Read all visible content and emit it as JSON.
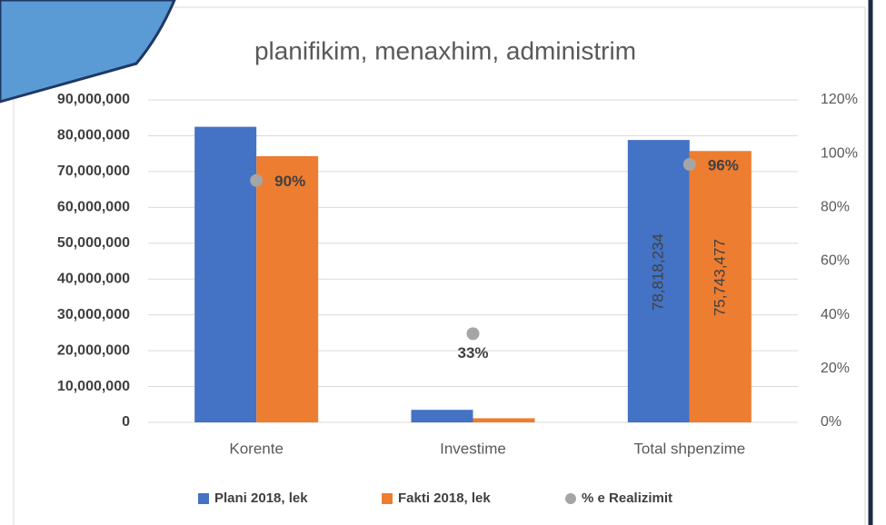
{
  "chart_data": {
    "type": "bar",
    "title": "planifikim, menaxhim, administrim",
    "categories": [
      "Korente",
      "Investime",
      "Total shpenzime"
    ],
    "series": [
      {
        "name": "Plani 2018, lek",
        "color": "#4472c4",
        "values": [
          82500000,
          3500000,
          78818234
        ],
        "value_labels": [
          null,
          null,
          "78,818,234"
        ]
      },
      {
        "name": "Fakti 2018, lek",
        "color": "#ed7d31",
        "values": [
          74300000,
          1150000,
          75743477
        ],
        "value_labels": [
          null,
          null,
          "75,743,477"
        ]
      },
      {
        "name": "% e Realizimit",
        "color": "#a5a5a5",
        "axis": "y2",
        "values": [
          90,
          33,
          96
        ],
        "value_labels": [
          "90%",
          "33%",
          "96%"
        ]
      }
    ],
    "ylim": [
      0,
      90000000
    ],
    "yticks": [
      0,
      {
        "value": 10000000,
        "label": "10,000,000"
      },
      {
        "value": 20000000,
        "label": "20,000,000"
      },
      {
        "value": 30000000,
        "label": "30,000,000"
      },
      {
        "value": 40000000,
        "label": "40,000,000"
      },
      {
        "value": 50000000,
        "label": "50,000,000"
      },
      {
        "value": 60000000,
        "label": "60,000,000"
      },
      {
        "value": 70000000,
        "label": "70,000,000"
      },
      {
        "value": 80000000,
        "label": "80,000,000"
      },
      {
        "value": 90000000,
        "label": "90,000,000"
      }
    ],
    "y2lim": [
      0,
      120
    ],
    "y2ticks": [
      {
        "value": 0,
        "label": "0%"
      },
      {
        "value": 20,
        "label": "20%"
      },
      {
        "value": 40,
        "label": "40%"
      },
      {
        "value": 60,
        "label": "60%"
      },
      {
        "value": 80,
        "label": "80%"
      },
      {
        "value": 100,
        "label": "100%"
      },
      {
        "value": 120,
        "label": "120%"
      }
    ],
    "grid": true,
    "legend": "bottom"
  }
}
